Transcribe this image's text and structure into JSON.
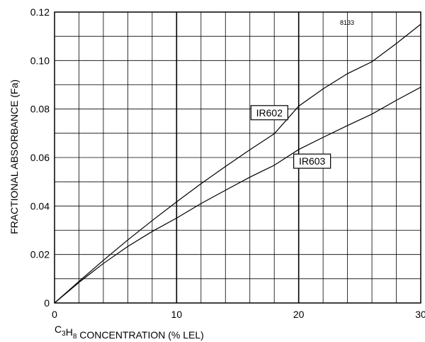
{
  "chart_data": {
    "type": "line",
    "title": "",
    "figure_code": "8133",
    "xlabel": {
      "parts": [
        {
          "text": "C",
          "sub": false
        },
        {
          "text": "3",
          "sub": true
        },
        {
          "text": "H",
          "sub": false
        },
        {
          "text": "8",
          "sub": true
        },
        {
          "text": " CONCENTRATION (% LEL)",
          "sub": false
        }
      ]
    },
    "ylabel": "FRACTIONAL ABSORBANCE (Fa)",
    "xlim": [
      0,
      30
    ],
    "ylim": [
      0,
      0.12
    ],
    "x_ticks": [
      0,
      10,
      20,
      30
    ],
    "x_tick_labels": [
      "0",
      "10",
      "20",
      "30"
    ],
    "x_grid_step": 2,
    "x_major_grid": [
      10,
      20
    ],
    "y_ticks": [
      0,
      0.02,
      0.04,
      0.06,
      0.08,
      0.1,
      0.12
    ],
    "y_tick_labels": [
      "0",
      "0.02",
      "0.04",
      "0.06",
      "0.08",
      "0.10",
      "0.12"
    ],
    "y_grid_step": 0.01,
    "grid": true,
    "legend": "inline labels",
    "series": [
      {
        "name": "IR602",
        "label_at": [
          17.6,
          0.0785
        ],
        "x": [
          0,
          2,
          4,
          6,
          8,
          10,
          12,
          14,
          16,
          18,
          20,
          22,
          24,
          26,
          28,
          30
        ],
        "values": [
          0,
          0.0089,
          0.0176,
          0.026,
          0.034,
          0.0417,
          0.0492,
          0.0563,
          0.0632,
          0.0698,
          0.0812,
          0.0883,
          0.0946,
          0.0995,
          0.107,
          0.115
        ]
      },
      {
        "name": "IR603",
        "label_at": [
          21.1,
          0.0585
        ],
        "x": [
          0,
          2,
          4,
          6,
          8,
          10,
          12,
          14,
          16,
          18,
          20,
          22,
          24,
          26,
          28,
          30
        ],
        "values": [
          0,
          0.0085,
          0.0163,
          0.0233,
          0.0295,
          0.035,
          0.041,
          0.0465,
          0.0519,
          0.0568,
          0.0633,
          0.0683,
          0.0732,
          0.0779,
          0.0836,
          0.089
        ]
      }
    ]
  }
}
